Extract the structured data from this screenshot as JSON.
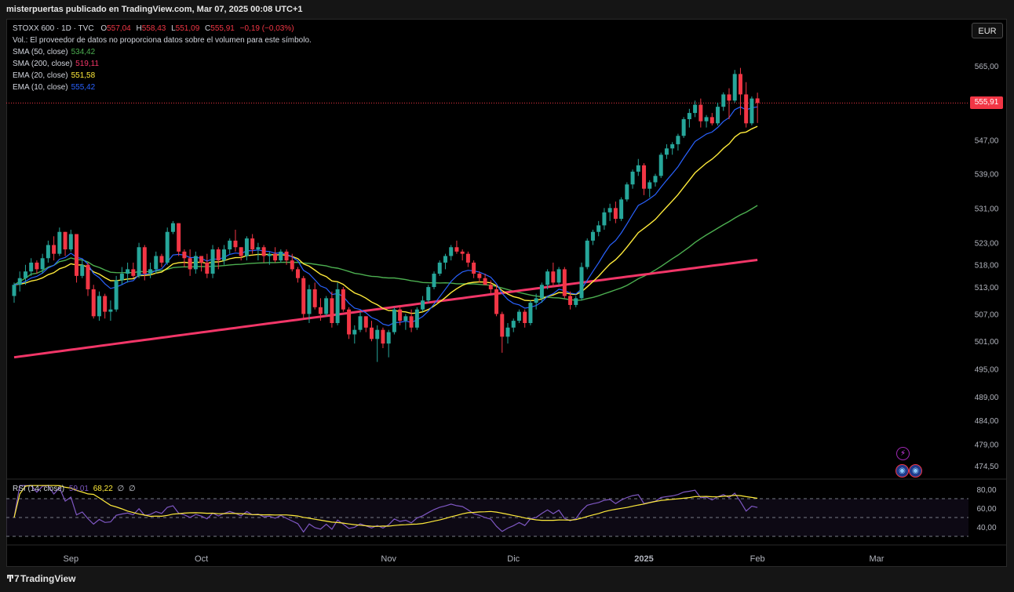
{
  "header": {
    "publisher_line": "misterpuertas publicado en TradingView.com, Mar 07, 2025 00:08 UTC+1"
  },
  "legend": {
    "symbol": "STOXX 600 · 1D · TVC",
    "o_label": "O",
    "o": "557,04",
    "h_label": "H",
    "h": "558,43",
    "l_label": "L",
    "l": "551,09",
    "c_label": "C",
    "c": "555,91",
    "change": "−0,19 (−0,03%)",
    "volume_note": "Vol.: El proveedor de datos no proporciona datos sobre el volumen para este símbolo.",
    "indicators": [
      {
        "label": "SMA (50, close)",
        "value": "534,42",
        "color": "#4caf50"
      },
      {
        "label": "SMA (200, close)",
        "value": "519,11",
        "color": "#f23668"
      },
      {
        "label": "EMA (20, close)",
        "value": "551,58",
        "color": "#ffeb3b"
      },
      {
        "label": "EMA (10, close)",
        "value": "555,42",
        "color": "#2962ff"
      }
    ],
    "rsi": {
      "label": "RSI (14, close)",
      "value": "59,01",
      "ma_value": "68,22",
      "extra1": "∅",
      "extra2": "∅"
    }
  },
  "currency_button": "EUR",
  "last_price_tag": "555,91",
  "colors": {
    "up": "#26a69a",
    "down": "#f23645",
    "sma50": "#4caf50",
    "sma200": "#f23668",
    "ema20": "#ffeb3b",
    "ema10": "#2962ff",
    "rsi": "#7e57c2",
    "rsi_ma": "#ffeb3b"
  },
  "event_icons": [
    "lightning-icon",
    "globe-icon",
    "globe-icon"
  ],
  "footer_brand": "TradingView",
  "chart_data": {
    "type": "candlestick",
    "price_axis": {
      "ticks": [
        565,
        547,
        539,
        531,
        523,
        518,
        513,
        507,
        501,
        495,
        489,
        484,
        479,
        474.5
      ],
      "tick_labels": [
        "565,00",
        "547,00",
        "539,00",
        "531,00",
        "523,00",
        "518,00",
        "513,00",
        "507,00",
        "501,00",
        "495,00",
        "489,00",
        "484,00",
        "479,00",
        "474,50"
      ],
      "scale": "log"
    },
    "time_axis": {
      "labels": [
        "Sep",
        "Oct",
        "Nov",
        "Dic",
        "2025",
        "Feb",
        "Mar"
      ]
    },
    "last_price": 555.91,
    "candles": [
      [
        511.0,
        514.0,
        509.5,
        513.5
      ],
      [
        513.5,
        516.5,
        512.0,
        515.0
      ],
      [
        515.0,
        518.0,
        513.5,
        516.5
      ],
      [
        516.5,
        519.5,
        515.5,
        518.5
      ],
      [
        518.5,
        519.0,
        516.0,
        517.0
      ],
      [
        517.0,
        520.5,
        516.0,
        519.5
      ],
      [
        519.5,
        523.5,
        518.5,
        522.5
      ],
      [
        522.5,
        524.5,
        519.0,
        520.5
      ],
      [
        520.5,
        526.5,
        520.0,
        525.5
      ],
      [
        525.5,
        525.5,
        520.0,
        521.5
      ],
      [
        521.5,
        526.0,
        521.0,
        525.0
      ],
      [
        525.0,
        525.0,
        514.0,
        515.5
      ],
      [
        515.5,
        519.0,
        515.0,
        518.0
      ],
      [
        518.0,
        518.5,
        511.0,
        512.5
      ],
      [
        512.5,
        513.5,
        506.0,
        506.5
      ],
      [
        506.5,
        512.0,
        505.5,
        511.0
      ],
      [
        511.0,
        511.5,
        506.0,
        507.5
      ],
      [
        507.5,
        510.0,
        505.5,
        508.0
      ],
      [
        508.0,
        515.5,
        507.5,
        514.5
      ],
      [
        514.5,
        517.5,
        513.5,
        516.0
      ],
      [
        516.0,
        518.5,
        514.0,
        517.0
      ],
      [
        517.0,
        518.5,
        515.0,
        515.5
      ],
      [
        515.5,
        523.0,
        515.0,
        522.0
      ],
      [
        522.0,
        522.5,
        514.5,
        516.0
      ],
      [
        516.0,
        518.5,
        515.0,
        517.0
      ],
      [
        517.0,
        521.0,
        516.0,
        520.0
      ],
      [
        520.0,
        520.5,
        517.5,
        518.5
      ],
      [
        518.5,
        526.5,
        518.0,
        525.5
      ],
      [
        525.5,
        528.0,
        525.0,
        527.5
      ],
      [
        527.5,
        527.5,
        520.0,
        521.0
      ],
      [
        521.0,
        521.5,
        517.5,
        519.5
      ],
      [
        519.5,
        521.5,
        515.5,
        517.0
      ],
      [
        517.0,
        521.0,
        516.0,
        520.0
      ],
      [
        520.0,
        520.0,
        516.5,
        518.5
      ],
      [
        518.5,
        520.5,
        515.0,
        516.0
      ],
      [
        516.0,
        522.5,
        515.0,
        521.5
      ],
      [
        521.5,
        522.0,
        517.0,
        519.0
      ],
      [
        519.0,
        522.5,
        518.0,
        521.5
      ],
      [
        521.5,
        524.0,
        520.5,
        523.5
      ],
      [
        523.5,
        526.0,
        521.0,
        522.0
      ],
      [
        522.0,
        522.0,
        519.0,
        520.0
      ],
      [
        520.0,
        524.5,
        519.0,
        524.0
      ],
      [
        524.0,
        525.0,
        520.5,
        521.5
      ],
      [
        521.5,
        523.0,
        519.0,
        522.0
      ],
      [
        522.0,
        522.5,
        518.5,
        520.0
      ],
      [
        520.0,
        521.0,
        518.0,
        520.5
      ],
      [
        520.5,
        522.0,
        518.5,
        519.0
      ],
      [
        519.0,
        521.5,
        518.5,
        521.0
      ],
      [
        521.0,
        521.5,
        518.0,
        519.0
      ],
      [
        519.0,
        520.5,
        516.5,
        517.0
      ],
      [
        517.0,
        517.5,
        514.0,
        515.0
      ],
      [
        515.0,
        515.5,
        506.0,
        507.0
      ],
      [
        507.0,
        513.5,
        505.0,
        512.5
      ],
      [
        512.5,
        514.0,
        508.0,
        508.5
      ],
      [
        508.5,
        510.5,
        505.5,
        507.0
      ],
      [
        507.0,
        511.0,
        506.5,
        510.5
      ],
      [
        510.5,
        512.0,
        504.0,
        505.0
      ],
      [
        505.0,
        514.0,
        504.5,
        512.5
      ],
      [
        512.5,
        513.0,
        507.5,
        508.0
      ],
      [
        508.0,
        508.5,
        501.5,
        502.5
      ],
      [
        502.5,
        504.5,
        500.5,
        503.5
      ],
      [
        503.5,
        507.5,
        503.0,
        506.5
      ],
      [
        506.5,
        506.5,
        503.0,
        504.0
      ],
      [
        504.0,
        505.5,
        501.0,
        501.5
      ],
      [
        501.5,
        504.5,
        496.5,
        503.5
      ],
      [
        503.5,
        504.0,
        499.5,
        500.5
      ],
      [
        500.5,
        503.5,
        497.5,
        503.0
      ],
      [
        503.0,
        508.5,
        502.5,
        508.0
      ],
      [
        508.0,
        509.0,
        504.5,
        505.5
      ],
      [
        505.5,
        507.0,
        503.5,
        506.5
      ],
      [
        506.5,
        508.0,
        503.0,
        504.0
      ],
      [
        504.0,
        508.5,
        503.5,
        508.0
      ],
      [
        508.0,
        511.0,
        507.5,
        510.0
      ],
      [
        510.0,
        513.5,
        509.5,
        513.0
      ],
      [
        513.0,
        516.5,
        512.5,
        516.0
      ],
      [
        516.0,
        519.0,
        515.5,
        518.5
      ],
      [
        518.5,
        520.5,
        517.0,
        520.0
      ],
      [
        520.0,
        522.5,
        519.0,
        522.0
      ],
      [
        522.0,
        523.5,
        520.5,
        521.0
      ],
      [
        521.0,
        521.5,
        519.0,
        520.5
      ],
      [
        520.5,
        521.0,
        517.5,
        518.5
      ],
      [
        518.5,
        519.0,
        515.0,
        516.0
      ],
      [
        516.0,
        516.5,
        514.0,
        515.0
      ],
      [
        515.0,
        516.0,
        513.5,
        513.5
      ],
      [
        513.5,
        514.5,
        511.5,
        512.5
      ],
      [
        512.5,
        513.5,
        506.5,
        507.0
      ],
      [
        507.0,
        507.5,
        498.5,
        502.0
      ],
      [
        502.0,
        505.0,
        500.5,
        504.0
      ],
      [
        504.0,
        506.0,
        503.0,
        505.5
      ],
      [
        505.5,
        508.0,
        505.0,
        507.5
      ],
      [
        507.5,
        508.0,
        504.0,
        505.0
      ],
      [
        505.0,
        510.0,
        504.5,
        509.5
      ],
      [
        509.5,
        511.5,
        508.0,
        510.5
      ],
      [
        510.5,
        514.0,
        509.5,
        513.5
      ],
      [
        513.5,
        517.0,
        512.5,
        516.5
      ],
      [
        516.5,
        518.5,
        513.0,
        514.0
      ],
      [
        514.0,
        517.5,
        513.5,
        517.0
      ],
      [
        517.0,
        517.5,
        510.5,
        511.0
      ],
      [
        511.0,
        512.0,
        508.0,
        509.0
      ],
      [
        509.0,
        511.0,
        508.5,
        510.5
      ],
      [
        510.5,
        518.5,
        510.0,
        517.5
      ],
      [
        517.5,
        524.0,
        517.0,
        523.5
      ],
      [
        523.5,
        526.0,
        522.5,
        525.5
      ],
      [
        525.5,
        528.0,
        524.5,
        527.0
      ],
      [
        527.0,
        531.0,
        526.0,
        530.0
      ],
      [
        530.0,
        532.0,
        528.0,
        531.0
      ],
      [
        531.0,
        532.5,
        527.5,
        528.5
      ],
      [
        528.5,
        533.5,
        528.0,
        533.0
      ],
      [
        533.0,
        537.0,
        532.5,
        536.5
      ],
      [
        536.5,
        540.0,
        535.5,
        539.5
      ],
      [
        539.5,
        542.5,
        538.5,
        541.0
      ],
      [
        541.0,
        541.5,
        534.0,
        535.5
      ],
      [
        535.5,
        537.5,
        533.5,
        537.0
      ],
      [
        537.0,
        539.0,
        536.0,
        538.5
      ],
      [
        538.5,
        544.0,
        538.0,
        543.5
      ],
      [
        543.5,
        546.0,
        542.5,
        545.0
      ],
      [
        545.0,
        546.5,
        543.5,
        546.0
      ],
      [
        546.0,
        548.5,
        544.5,
        548.0
      ],
      [
        548.0,
        552.5,
        547.5,
        552.0
      ],
      [
        552.0,
        554.5,
        550.0,
        553.5
      ],
      [
        553.5,
        556.5,
        552.5,
        555.5
      ],
      [
        555.5,
        557.0,
        550.0,
        551.5
      ],
      [
        551.5,
        553.0,
        550.0,
        552.5
      ],
      [
        552.5,
        553.5,
        550.5,
        551.0
      ],
      [
        551.0,
        556.0,
        550.5,
        555.0
      ],
      [
        555.0,
        558.5,
        554.0,
        558.0
      ],
      [
        558.0,
        559.5,
        552.0,
        556.5
      ],
      [
        556.5,
        564.0,
        556.0,
        563.0
      ],
      [
        563.0,
        564.5,
        553.0,
        558.0
      ],
      [
        558.0,
        561.0,
        550.0,
        551.0
      ],
      [
        551.0,
        557.5,
        550.5,
        557.0
      ],
      [
        557.04,
        558.43,
        551.09,
        555.91
      ]
    ],
    "sma200": {
      "start": 497.5,
      "end": 519.11
    },
    "rsi_axis": {
      "ticks": [
        80,
        60,
        40
      ],
      "tick_labels": [
        "80,00",
        "60,00",
        "40,00"
      ],
      "upper": 70,
      "middle": 50,
      "lower": 30
    }
  }
}
